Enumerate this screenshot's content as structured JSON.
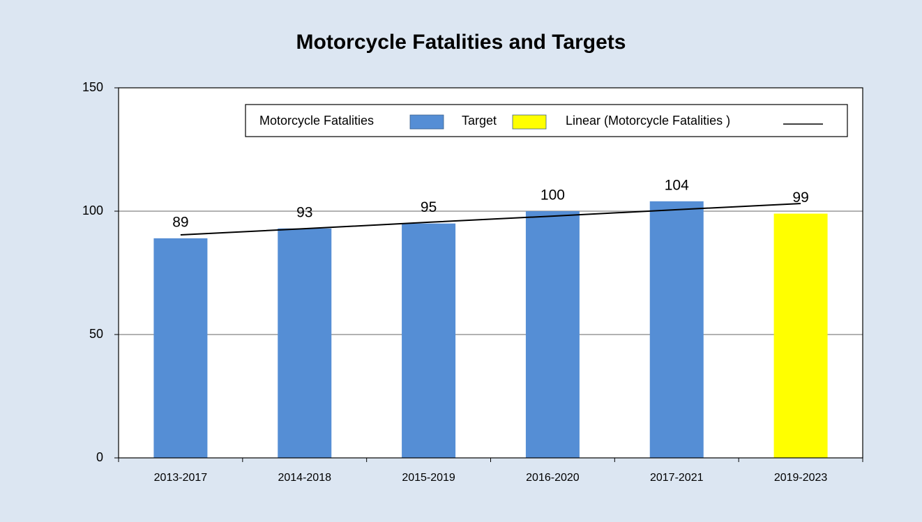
{
  "chart_data": {
    "type": "bar",
    "title": "Motorcycle Fatalities and Targets",
    "categories": [
      "2013-2017",
      "2014-2018",
      "2015-2019",
      "2016-2020",
      "2017-2021",
      "2019-2023"
    ],
    "series": [
      {
        "name": "Motorcycle Fatalities",
        "color": "#558ed5",
        "values": [
          89,
          93,
          95,
          100,
          104,
          null
        ]
      },
      {
        "name": "Target",
        "color": "#ffff00",
        "values": [
          null,
          null,
          null,
          null,
          null,
          99
        ]
      },
      {
        "name": "Linear (Motorcycle Fatalities )",
        "type": "line",
        "color": "#000000",
        "values": [
          90.4,
          92.9,
          95.5,
          98.0,
          100.6,
          103.1
        ]
      }
    ],
    "ylim": [
      0,
      150
    ],
    "yticks": [
      0,
      50,
      100,
      150
    ],
    "grid": true,
    "legend": "top"
  }
}
